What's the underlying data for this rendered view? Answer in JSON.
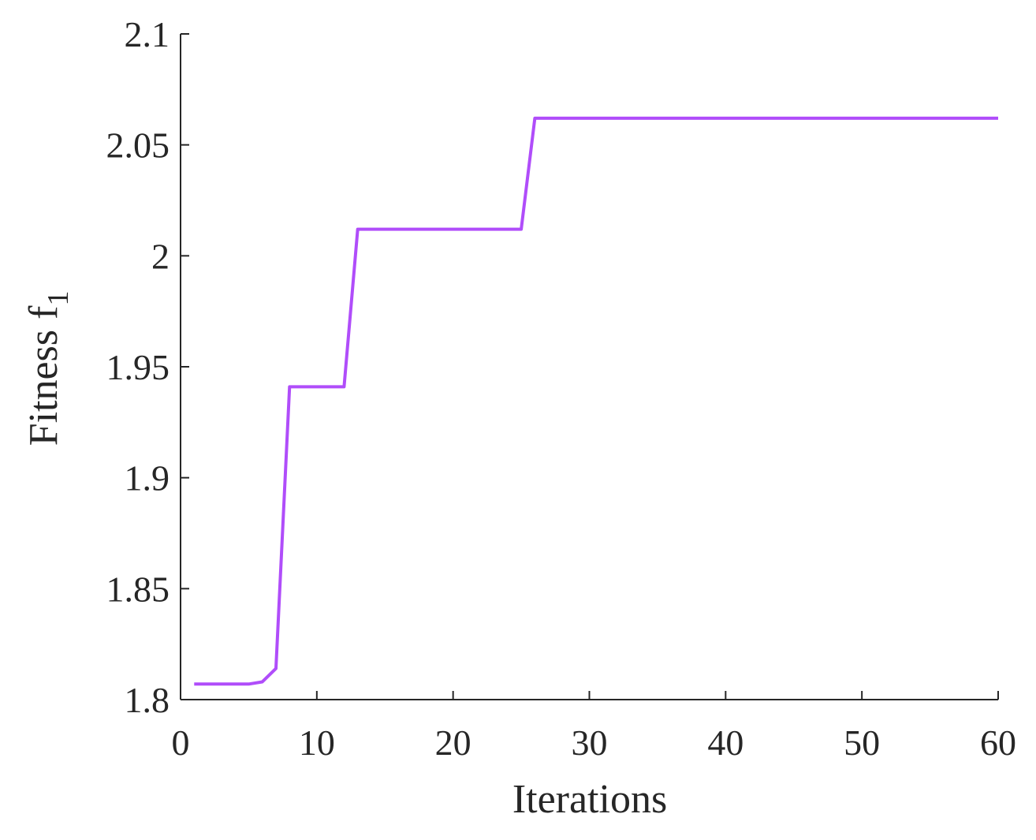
{
  "chart_data": {
    "type": "line",
    "title": "",
    "xlabel": "Iterations",
    "ylabel_main": "Fitness f",
    "ylabel_sub": "1",
    "xlim": [
      0,
      60
    ],
    "ylim": [
      1.8,
      2.1
    ],
    "xticks": [
      0,
      10,
      20,
      30,
      40,
      50,
      60
    ],
    "xtick_labels": [
      "0",
      "10",
      "20",
      "30",
      "40",
      "50",
      "60"
    ],
    "yticks": [
      1.8,
      1.85,
      1.9,
      1.95,
      2.0,
      2.05,
      2.1
    ],
    "ytick_labels": [
      "1.8",
      "1.85",
      "1.9",
      "1.95",
      "2",
      "2.05",
      "2.1"
    ],
    "grid": false,
    "series": [
      {
        "color": "#b04dfa",
        "x": [
          1,
          2,
          3,
          4,
          5,
          6,
          7,
          8,
          9,
          10,
          11,
          12,
          13,
          14,
          15,
          16,
          17,
          18,
          19,
          20,
          21,
          22,
          23,
          24,
          25,
          26,
          27,
          28,
          29,
          30,
          31,
          32,
          33,
          34,
          35,
          36,
          37,
          38,
          39,
          40,
          41,
          42,
          43,
          44,
          45,
          46,
          47,
          48,
          49,
          50,
          51,
          52,
          53,
          54,
          55,
          56,
          57,
          58,
          59,
          60
        ],
        "y": [
          1.807,
          1.807,
          1.807,
          1.807,
          1.807,
          1.808,
          1.814,
          1.941,
          1.941,
          1.941,
          1.941,
          1.941,
          2.012,
          2.012,
          2.012,
          2.012,
          2.012,
          2.012,
          2.012,
          2.012,
          2.012,
          2.012,
          2.012,
          2.012,
          2.012,
          2.062,
          2.062,
          2.062,
          2.062,
          2.062,
          2.062,
          2.062,
          2.062,
          2.062,
          2.062,
          2.062,
          2.062,
          2.062,
          2.062,
          2.062,
          2.062,
          2.062,
          2.062,
          2.062,
          2.062,
          2.062,
          2.062,
          2.062,
          2.062,
          2.062,
          2.062,
          2.062,
          2.062,
          2.062,
          2.062,
          2.062,
          2.062,
          2.062,
          2.062,
          2.062
        ]
      }
    ]
  }
}
